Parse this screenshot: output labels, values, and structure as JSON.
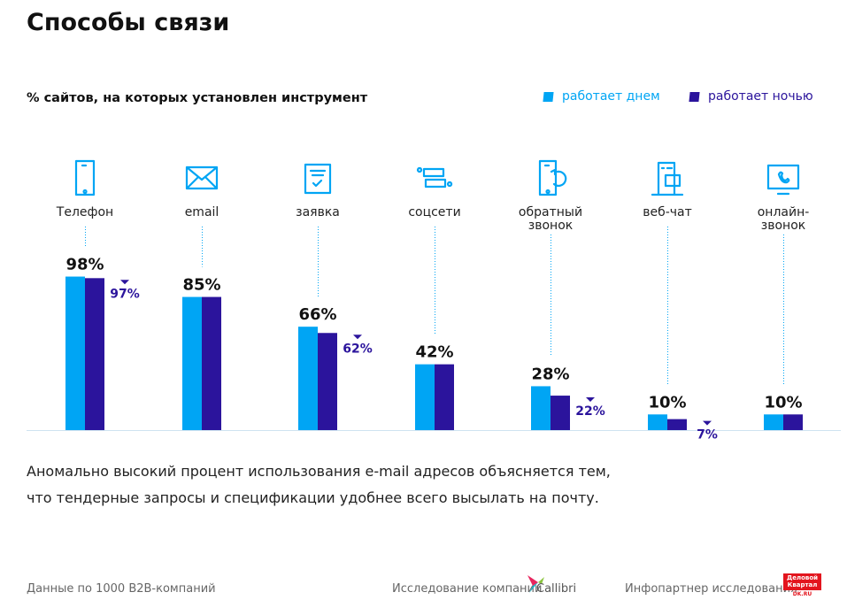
{
  "title": "Способы связи",
  "chart_data": {
    "type": "bar",
    "subtitle": "% сайтов, на которых установлен инструмент",
    "categories": [
      "Телефон",
      "email",
      "заявка",
      "соцсети",
      "обратный звонок",
      "веб-чат",
      "онлайн-звонок"
    ],
    "category_icons": [
      "phone-icon",
      "envelope-icon",
      "form-icon",
      "social-icon",
      "callback-icon",
      "webchat-icon",
      "online-call-icon"
    ],
    "series": [
      {
        "name": "работает днем",
        "color": "#00a5f4",
        "values": [
          98,
          85,
          66,
          42,
          28,
          10,
          10
        ]
      },
      {
        "name": "работает ночью",
        "color": "#2b149c",
        "values": [
          97,
          85,
          62,
          42,
          22,
          7,
          10
        ]
      }
    ],
    "value_suffix": "%",
    "ylim": [
      0,
      100
    ],
    "grid": false,
    "legend": "top-right"
  },
  "note": [
    "Аномально высокий процент использования e-mail адресов объясняется тем,",
    "что тендерные запросы и спецификации удобнее всего высылать на почту."
  ],
  "footer": {
    "source": "Данные по 1000 B2B-компаний",
    "research_by": "Исследование компании",
    "company": "Callibri",
    "partner": "Инфопартнер исследования",
    "partner_logo": "Деловой квартал DK.RU"
  }
}
